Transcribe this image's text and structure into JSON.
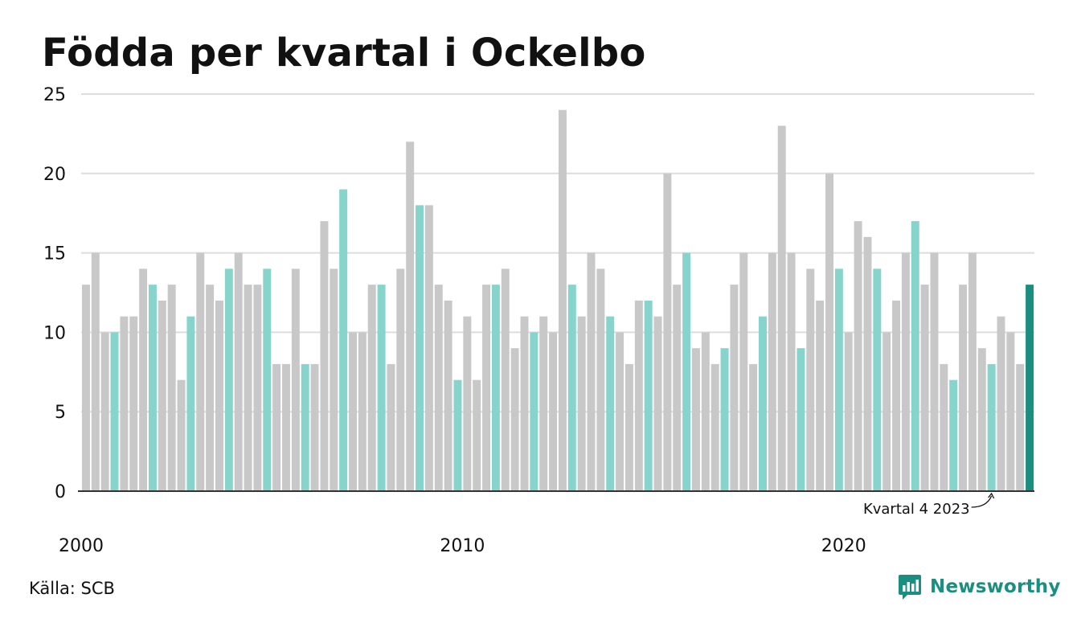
{
  "title": "Födda per kvartal i Ockelbo",
  "source": "Källa: SCB",
  "brand": "Newsworthy",
  "colors": {
    "default": "#c8c8c8",
    "q4": "#86d4cc",
    "latest": "#1a8f80",
    "grid": "#dddddd",
    "axis": "#333333",
    "brand": "#1a8f80"
  },
  "chart_data": {
    "type": "bar",
    "title": "Födda per kvartal i Ockelbo",
    "start_year": 2000,
    "start_quarter": 1,
    "end_year": 2024,
    "end_quarter": 4,
    "ylim": [
      0,
      25
    ],
    "yticks": [
      0,
      5,
      10,
      15,
      20,
      25
    ],
    "xtick_labels": [
      "2000",
      "2010",
      "2020"
    ],
    "grid": true,
    "legend": "none",
    "highlight": "every fourth bar in teal, latest bar in dark teal",
    "annotation": "Kvartal 4 2023",
    "values": [
      13,
      15,
      10,
      10,
      11,
      11,
      14,
      13,
      12,
      13,
      7,
      11,
      15,
      13,
      12,
      14,
      15,
      13,
      13,
      14,
      8,
      8,
      14,
      8,
      8,
      17,
      14,
      19,
      10,
      10,
      13,
      13,
      8,
      14,
      22,
      18,
      18,
      13,
      12,
      7,
      11,
      7,
      13,
      13,
      14,
      9,
      11,
      10,
      11,
      10,
      24,
      13,
      11,
      15,
      14,
      11,
      10,
      8,
      12,
      12,
      11,
      20,
      13,
      15,
      9,
      10,
      8,
      9,
      13,
      15,
      8,
      11,
      15,
      23,
      15,
      9,
      14,
      12,
      20,
      14,
      10,
      17,
      16,
      14,
      10,
      12,
      15,
      17,
      13,
      15,
      8,
      7,
      13,
      15,
      9,
      8,
      11,
      10,
      8,
      13
    ]
  }
}
